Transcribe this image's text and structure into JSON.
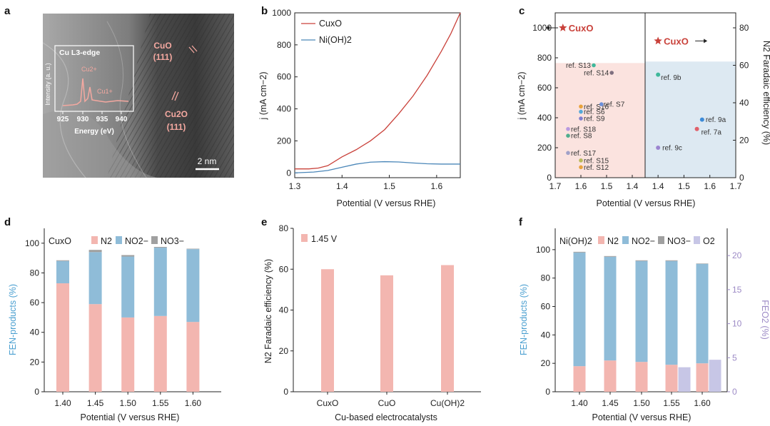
{
  "colors": {
    "n2": "#f3b6b0",
    "no2": "#8fbcd8",
    "no3": "#a0a0a0",
    "o2": "#c7c6e6",
    "cuxo_line": "#c9413a",
    "nioh_line": "#4a86b8",
    "region_pink": "#fbe3df",
    "region_blue": "#dde9f2",
    "fe_axis_blue": "#4a9fd0",
    "fe_o2_purple": "#9d8bc6"
  },
  "panels": {
    "a": {
      "label": "a",
      "inset_title": "Cu L3-edge",
      "inset_ylabel": "Intensity (a. u.)",
      "inset_xlabel": "Energy (eV)",
      "inset_xticks": [
        "925",
        "930",
        "935",
        "940"
      ],
      "peak_1": "Cu2+",
      "peak_2": "Cu1+",
      "cuo_label_1": "CuO",
      "cuo_label_2": "(111)",
      "cu2o_label_1": "Cu2O",
      "cu2o_label_2": "(111)",
      "scale_bar": "2 nm"
    },
    "b": {
      "label": "b",
      "legend": [
        "CuxO",
        "Ni(OH)2"
      ],
      "xlabel": "Potential (V versus RHE)",
      "ylabel": "j (mA cm−2)",
      "xticks": [
        "1.3",
        "1.4",
        "1.5",
        "1.6"
      ],
      "yticks": [
        "0",
        "200",
        "400",
        "600",
        "800",
        "1000"
      ]
    },
    "c": {
      "label": "c",
      "xlabel": "Potential (V versus RHE)",
      "ylabel_left": "j (mA cm−2)",
      "ylabel_right": "N2 Faradaic efficiency (%)",
      "xticks_left": [
        "1.7",
        "1.6",
        "1.5",
        "1.4"
      ],
      "xticks_right": [
        "1.4",
        "1.5",
        "1.6",
        "1.7"
      ],
      "yticks_left": [
        "0",
        "200",
        "400",
        "600",
        "800",
        "1000"
      ],
      "yticks_right": [
        "0",
        "20",
        "40",
        "60",
        "80"
      ],
      "star_left": "CuxO",
      "star_right": "CuxO"
    },
    "d": {
      "label": "d",
      "xlabel": "Potential (V versus RHE)",
      "ylabel": "FEN-products (%)",
      "legend": [
        "CuxO",
        "N2",
        "NO2−",
        "NO3−"
      ],
      "yticks": [
        "0",
        "20",
        "40",
        "60",
        "80",
        "100"
      ]
    },
    "e": {
      "label": "e",
      "xlabel": "Cu-based electrocatalysts",
      "ylabel": "N2 Faradaic efficiency (%)",
      "legend": [
        "1.45 V"
      ],
      "yticks": [
        "0",
        "20",
        "40",
        "60",
        "80"
      ]
    },
    "f": {
      "label": "f",
      "xlabel": "Potential (V versus RHE)",
      "ylabel_left": "FEN-products (%)",
      "ylabel_right": "FEO2 (%)",
      "legend": [
        "Ni(OH)2",
        "N2",
        "NO2−",
        "NO3−",
        "O2"
      ],
      "yticks_left": [
        "0",
        "20",
        "40",
        "60",
        "80",
        "100"
      ],
      "yticks_right": [
        "0",
        "5",
        "10",
        "15",
        "20"
      ]
    }
  },
  "chart_data": [
    {
      "panel": "b",
      "type": "line",
      "xlabel": "Potential (V versus RHE)",
      "ylabel": "j (mA cm−2)",
      "xlim": [
        1.3,
        1.65
      ],
      "ylim": [
        -30,
        1000
      ],
      "series": [
        {
          "name": "CuxO",
          "x": [
            1.3,
            1.33,
            1.35,
            1.37,
            1.4,
            1.43,
            1.46,
            1.49,
            1.52,
            1.55,
            1.58,
            1.61,
            1.63,
            1.65
          ],
          "y": [
            25,
            25,
            30,
            45,
            100,
            145,
            200,
            270,
            370,
            480,
            610,
            760,
            870,
            1000
          ]
        },
        {
          "name": "Ni(OH)2",
          "x": [
            1.3,
            1.34,
            1.37,
            1.4,
            1.43,
            1.46,
            1.49,
            1.52,
            1.55,
            1.58,
            1.61,
            1.65
          ],
          "y": [
            0,
            5,
            15,
            35,
            55,
            67,
            70,
            68,
            62,
            57,
            55,
            55
          ]
        }
      ]
    },
    {
      "panel": "c",
      "type": "scatter",
      "xlabel": "Potential (V versus RHE)",
      "left": {
        "ylabel": "j (mA cm−2)",
        "ylim": [
          0,
          1100
        ],
        "xlim": [
          1.7,
          1.35
        ],
        "points": [
          {
            "label": "CuxO",
            "x": 1.67,
            "y": 1000,
            "color": "#c9413a",
            "marker": "star"
          },
          {
            "label": "ref. S13",
            "x": 1.55,
            "y": 750,
            "color": "#3fb89b"
          },
          {
            "label": "ref. S14",
            "x": 1.48,
            "y": 700,
            "color": "#7f6f7f"
          },
          {
            "label": "ref. S16",
            "x": 1.6,
            "y": 475,
            "color": "#e8a33d"
          },
          {
            "label": "ref. S7",
            "x": 1.52,
            "y": 490,
            "color": "#6c8fd8"
          },
          {
            "label": "ref. S6",
            "x": 1.6,
            "y": 440,
            "color": "#55a9d8"
          },
          {
            "label": "ref. S9",
            "x": 1.6,
            "y": 395,
            "color": "#7f7fd0"
          },
          {
            "label": "ref. S18",
            "x": 1.65,
            "y": 325,
            "color": "#b99ae0"
          },
          {
            "label": "ref. S8",
            "x": 1.65,
            "y": 280,
            "color": "#4fae8e"
          },
          {
            "label": "ref. S17",
            "x": 1.65,
            "y": 165,
            "color": "#a1a1c8"
          },
          {
            "label": "ref. S15",
            "x": 1.6,
            "y": 115,
            "color": "#b9b95a"
          },
          {
            "label": "ref. S12",
            "x": 1.6,
            "y": 70,
            "color": "#e8a33d"
          }
        ]
      },
      "right": {
        "ylabel": "N2 Faradaic efficiency (%)",
        "ylim": [
          0,
          88
        ],
        "xlim": [
          1.35,
          1.7
        ],
        "points": [
          {
            "label": "CuxO",
            "x": 1.4,
            "y": 73,
            "color": "#c9413a",
            "marker": "star"
          },
          {
            "label": "ref. 9b",
            "x": 1.4,
            "y": 55,
            "color": "#3fb89b"
          },
          {
            "label": "ref. 9a",
            "x": 1.57,
            "y": 31,
            "color": "#3c8bd8"
          },
          {
            "label": "ref. 7a",
            "x": 1.55,
            "y": 26,
            "color": "#e0606a"
          },
          {
            "label": "ref. 9c",
            "x": 1.4,
            "y": 16,
            "color": "#9b84d0"
          }
        ]
      }
    },
    {
      "panel": "d",
      "type": "bar",
      "stacked": true,
      "categories": [
        "1.40",
        "1.45",
        "1.50",
        "1.55",
        "1.60"
      ],
      "ylim": [
        0,
        110
      ],
      "series": [
        {
          "name": "N2",
          "values": [
            73,
            59,
            50,
            51,
            47
          ]
        },
        {
          "name": "NO2−",
          "values": [
            15,
            35,
            41,
            46,
            49
          ]
        },
        {
          "name": "NO3−",
          "values": [
            0.5,
            1.5,
            1.0,
            0.5,
            0.3
          ]
        }
      ]
    },
    {
      "panel": "e",
      "type": "bar",
      "categories": [
        "CuxO",
        "CuO",
        "Cu(OH)2"
      ],
      "ylim": [
        0,
        80
      ],
      "series": [
        {
          "name": "1.45 V",
          "values": [
            60,
            57,
            62
          ]
        }
      ]
    },
    {
      "panel": "f",
      "type": "bar",
      "stacked": true,
      "categories": [
        "1.40",
        "1.45",
        "1.50",
        "1.55",
        "1.60"
      ],
      "ylim_left": [
        0,
        115
      ],
      "ylim_right": [
        0,
        24
      ],
      "series": [
        {
          "name": "N2",
          "values": [
            18,
            22,
            21,
            19,
            20
          ]
        },
        {
          "name": "NO2−",
          "values": [
            80,
            73,
            71,
            73,
            70
          ]
        },
        {
          "name": "NO3−",
          "values": [
            0.5,
            0.5,
            0.5,
            0.5,
            0.3
          ]
        },
        {
          "name": "O2",
          "axis": "right",
          "values": [
            0,
            0,
            0,
            3.6,
            4.7
          ]
        }
      ]
    }
  ]
}
